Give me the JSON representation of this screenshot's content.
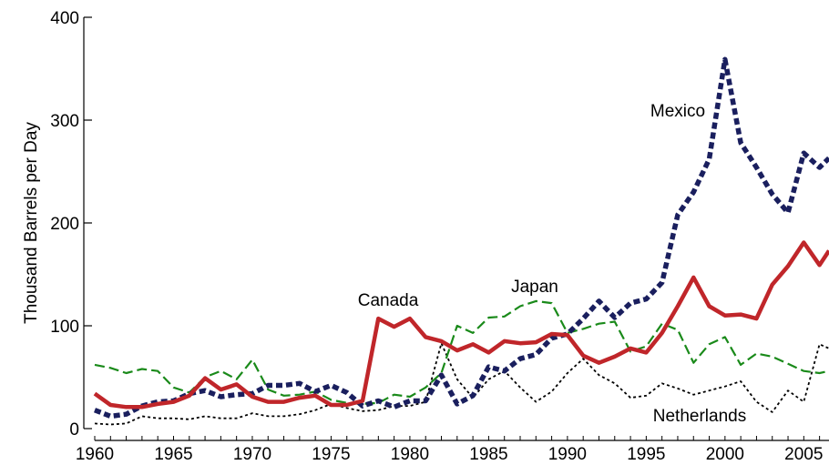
{
  "chart_data": {
    "type": "line",
    "title": "",
    "xlabel": "",
    "ylabel": "Thousand Barrels per Day",
    "xlim": [
      1960,
      2006.6
    ],
    "ylim": [
      0,
      400
    ],
    "x_ticks": [
      "1960",
      "1965",
      "1970",
      "1975",
      "1980",
      "1985",
      "1990",
      "1995",
      "2000",
      "2005"
    ],
    "y_ticks": [
      "0",
      "100",
      "200",
      "300",
      "400"
    ],
    "grid": false,
    "legend": "none",
    "x": [
      1960,
      1961,
      1962,
      1963,
      1964,
      1965,
      1966,
      1967,
      1968,
      1969,
      1970,
      1971,
      1972,
      1973,
      1974,
      1975,
      1976,
      1977,
      1978,
      1979,
      1980,
      1981,
      1982,
      1983,
      1984,
      1985,
      1986,
      1987,
      1988,
      1989,
      1990,
      1991,
      1992,
      1993,
      1994,
      1995,
      1996,
      1997,
      1998,
      1999,
      2000,
      2001,
      2002,
      2003,
      2004,
      2005,
      2006,
      2006.6
    ],
    "series": [
      {
        "name": "Mexico",
        "color": "#1a1f5e",
        "style": "dash-heavy",
        "values": [
          18,
          12,
          14,
          22,
          26,
          27,
          34,
          37,
          31,
          33,
          34,
          42,
          42,
          44,
          36,
          42,
          35,
          22,
          27,
          21,
          27,
          27,
          52,
          24,
          32,
          60,
          56,
          68,
          72,
          88,
          92,
          107,
          124,
          108,
          122,
          126,
          142,
          208,
          230,
          262,
          359,
          278,
          254,
          228,
          210,
          268,
          254,
          263
        ]
      },
      {
        "name": "Canada",
        "color": "#c0262a",
        "style": "solid-thick",
        "values": [
          34,
          23,
          21,
          21,
          24,
          26,
          32,
          49,
          38,
          43,
          31,
          26,
          26,
          30,
          32,
          23,
          23,
          27,
          107,
          99,
          107,
          89,
          85,
          76,
          82,
          74,
          85,
          83,
          84,
          92,
          91,
          71,
          64,
          70,
          78,
          74,
          93,
          119,
          147,
          119,
          110,
          111,
          107,
          140,
          158,
          181,
          159,
          173
        ]
      },
      {
        "name": "Japan",
        "color": "#1a8a1a",
        "style": "dash-medium",
        "values": [
          62,
          59,
          54,
          58,
          56,
          40,
          35,
          50,
          56,
          48,
          67,
          38,
          32,
          33,
          36,
          28,
          25,
          24,
          25,
          33,
          31,
          40,
          54,
          100,
          93,
          108,
          109,
          119,
          124,
          122,
          93,
          97,
          102,
          104,
          75,
          80,
          102,
          96,
          64,
          82,
          89,
          62,
          73,
          70,
          63,
          56,
          54,
          56
        ]
      },
      {
        "name": "Netherlands",
        "color": "#000000",
        "style": "dotted",
        "values": [
          5,
          4,
          5,
          12,
          10,
          10,
          9,
          12,
          10,
          10,
          15,
          12,
          12,
          14,
          18,
          24,
          20,
          17,
          18,
          22,
          22,
          26,
          83,
          48,
          30,
          48,
          56,
          40,
          26,
          36,
          54,
          68,
          52,
          44,
          30,
          32,
          44,
          39,
          33,
          37,
          41,
          46,
          26,
          16,
          37,
          26,
          82,
          78
        ]
      }
    ]
  }
}
